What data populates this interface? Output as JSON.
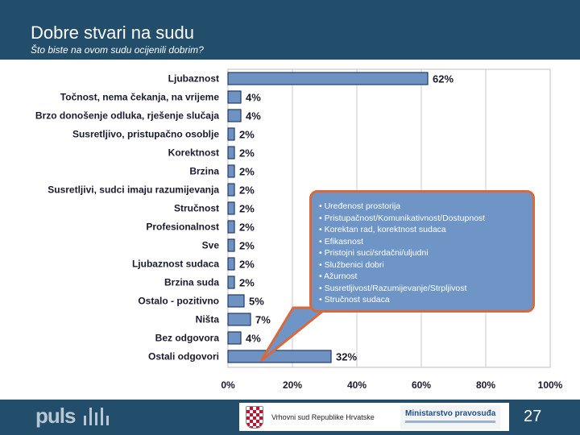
{
  "header": {
    "title": "Dobre stvari na sudu",
    "subtitle": "Što biste na ovom sudu ocijenili dobrim?"
  },
  "chart_data": {
    "type": "bar",
    "orientation": "horizontal",
    "categories": [
      "Ljubaznost",
      "Točnost, nema čekanja, na vrijeme",
      "Brzo donošenje odluka, rješenje slučaja",
      "Susretljivo, pristupačno osoblje",
      "Korektnost",
      "Brzina",
      "Susretljivi, sudci imaju razumijevanja",
      "Stručnost",
      "Profesionalnost",
      "Sve",
      "Ljubaznost sudaca",
      "Brzina suda",
      "Ostalo - pozitivno",
      "Ništa",
      "Bez odgovora",
      "Ostali odgovori"
    ],
    "values": [
      62,
      4,
      4,
      2,
      2,
      2,
      2,
      2,
      2,
      2,
      2,
      2,
      5,
      7,
      4,
      32
    ],
    "value_labels": [
      "62%",
      "4%",
      "4%",
      "2%",
      "2%",
      "2%",
      "2%",
      "2%",
      "2%",
      "2%",
      "2%",
      "2%",
      "5%",
      "7%",
      "4%",
      "32%"
    ],
    "xlim": [
      0,
      100
    ],
    "xticks": [
      "0%",
      "20%",
      "40%",
      "60%",
      "80%",
      "100%"
    ],
    "grid": true,
    "bar_color": "#6e92c1",
    "bar_edge_color": "#223a66"
  },
  "callout": {
    "items": [
      "• Uređenost prostorija",
      "• Pristupačnost/Komunikativnost/Dostupnost",
      "• Korektan rad, korektnost sudaca",
      "• Efikasnost",
      "• Pristojni suci/srdačni/uljudni",
      "• Službenici dobri",
      "• Ažurnost",
      "• Susretljivost/Razumijevanje/Strpljivost",
      "• Stručnost sudaca"
    ],
    "fill_color": "#6f95c7",
    "border_color": "#d9693b"
  },
  "footer": {
    "logo": "puls",
    "court": "Vrhovni sud Republike Hrvatske",
    "ministry": "Ministarstvo pravosuđa",
    "page_number": "27"
  },
  "colors": {
    "header_bg": "#224d6b",
    "footer_bg": "#224d6b"
  }
}
